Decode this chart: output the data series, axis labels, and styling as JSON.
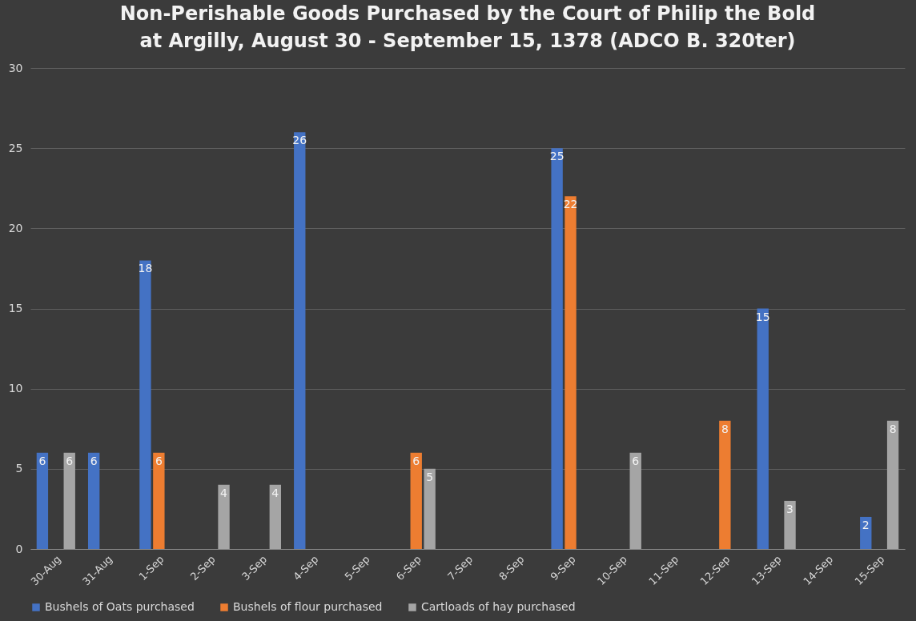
{
  "chart_data": {
    "type": "bar",
    "title": "Non-Perishable Goods Purchased by the Court of Philip the Bold at Argilly, August 30 - September 15, 1378 (ADCO B. 320ter)",
    "categories": [
      "30-Aug",
      "31-Aug",
      "1-Sep",
      "2-Sep",
      "3-Sep",
      "4-Sep",
      "5-Sep",
      "6-Sep",
      "7-Sep",
      "8-Sep",
      "9-Sep",
      "10-Sep",
      "11-Sep",
      "12-Sep",
      "13-Sep",
      "14-Sep",
      "15-Sep"
    ],
    "series": [
      {
        "name": "Bushels of Oats purchased",
        "color": "#4472c4",
        "values": [
          6,
          6,
          18,
          null,
          null,
          26,
          null,
          null,
          null,
          null,
          25,
          null,
          null,
          null,
          15,
          null,
          2
        ]
      },
      {
        "name": "Bushels of flour purchased",
        "color": "#ed7d31",
        "values": [
          null,
          null,
          6,
          null,
          null,
          null,
          null,
          6,
          null,
          null,
          22,
          null,
          null,
          8,
          null,
          null,
          null
        ]
      },
      {
        "name": "Cartloads of hay purchased",
        "color": "#a5a5a5",
        "values": [
          6,
          null,
          null,
          4,
          4,
          null,
          null,
          5,
          null,
          null,
          null,
          6,
          null,
          null,
          3,
          null,
          8
        ]
      }
    ],
    "ylim": [
      0,
      30
    ],
    "yticks": [
      0,
      5,
      10,
      15,
      20,
      25,
      30
    ],
    "grid": "y",
    "legend": "bottom",
    "data_labels": true
  }
}
